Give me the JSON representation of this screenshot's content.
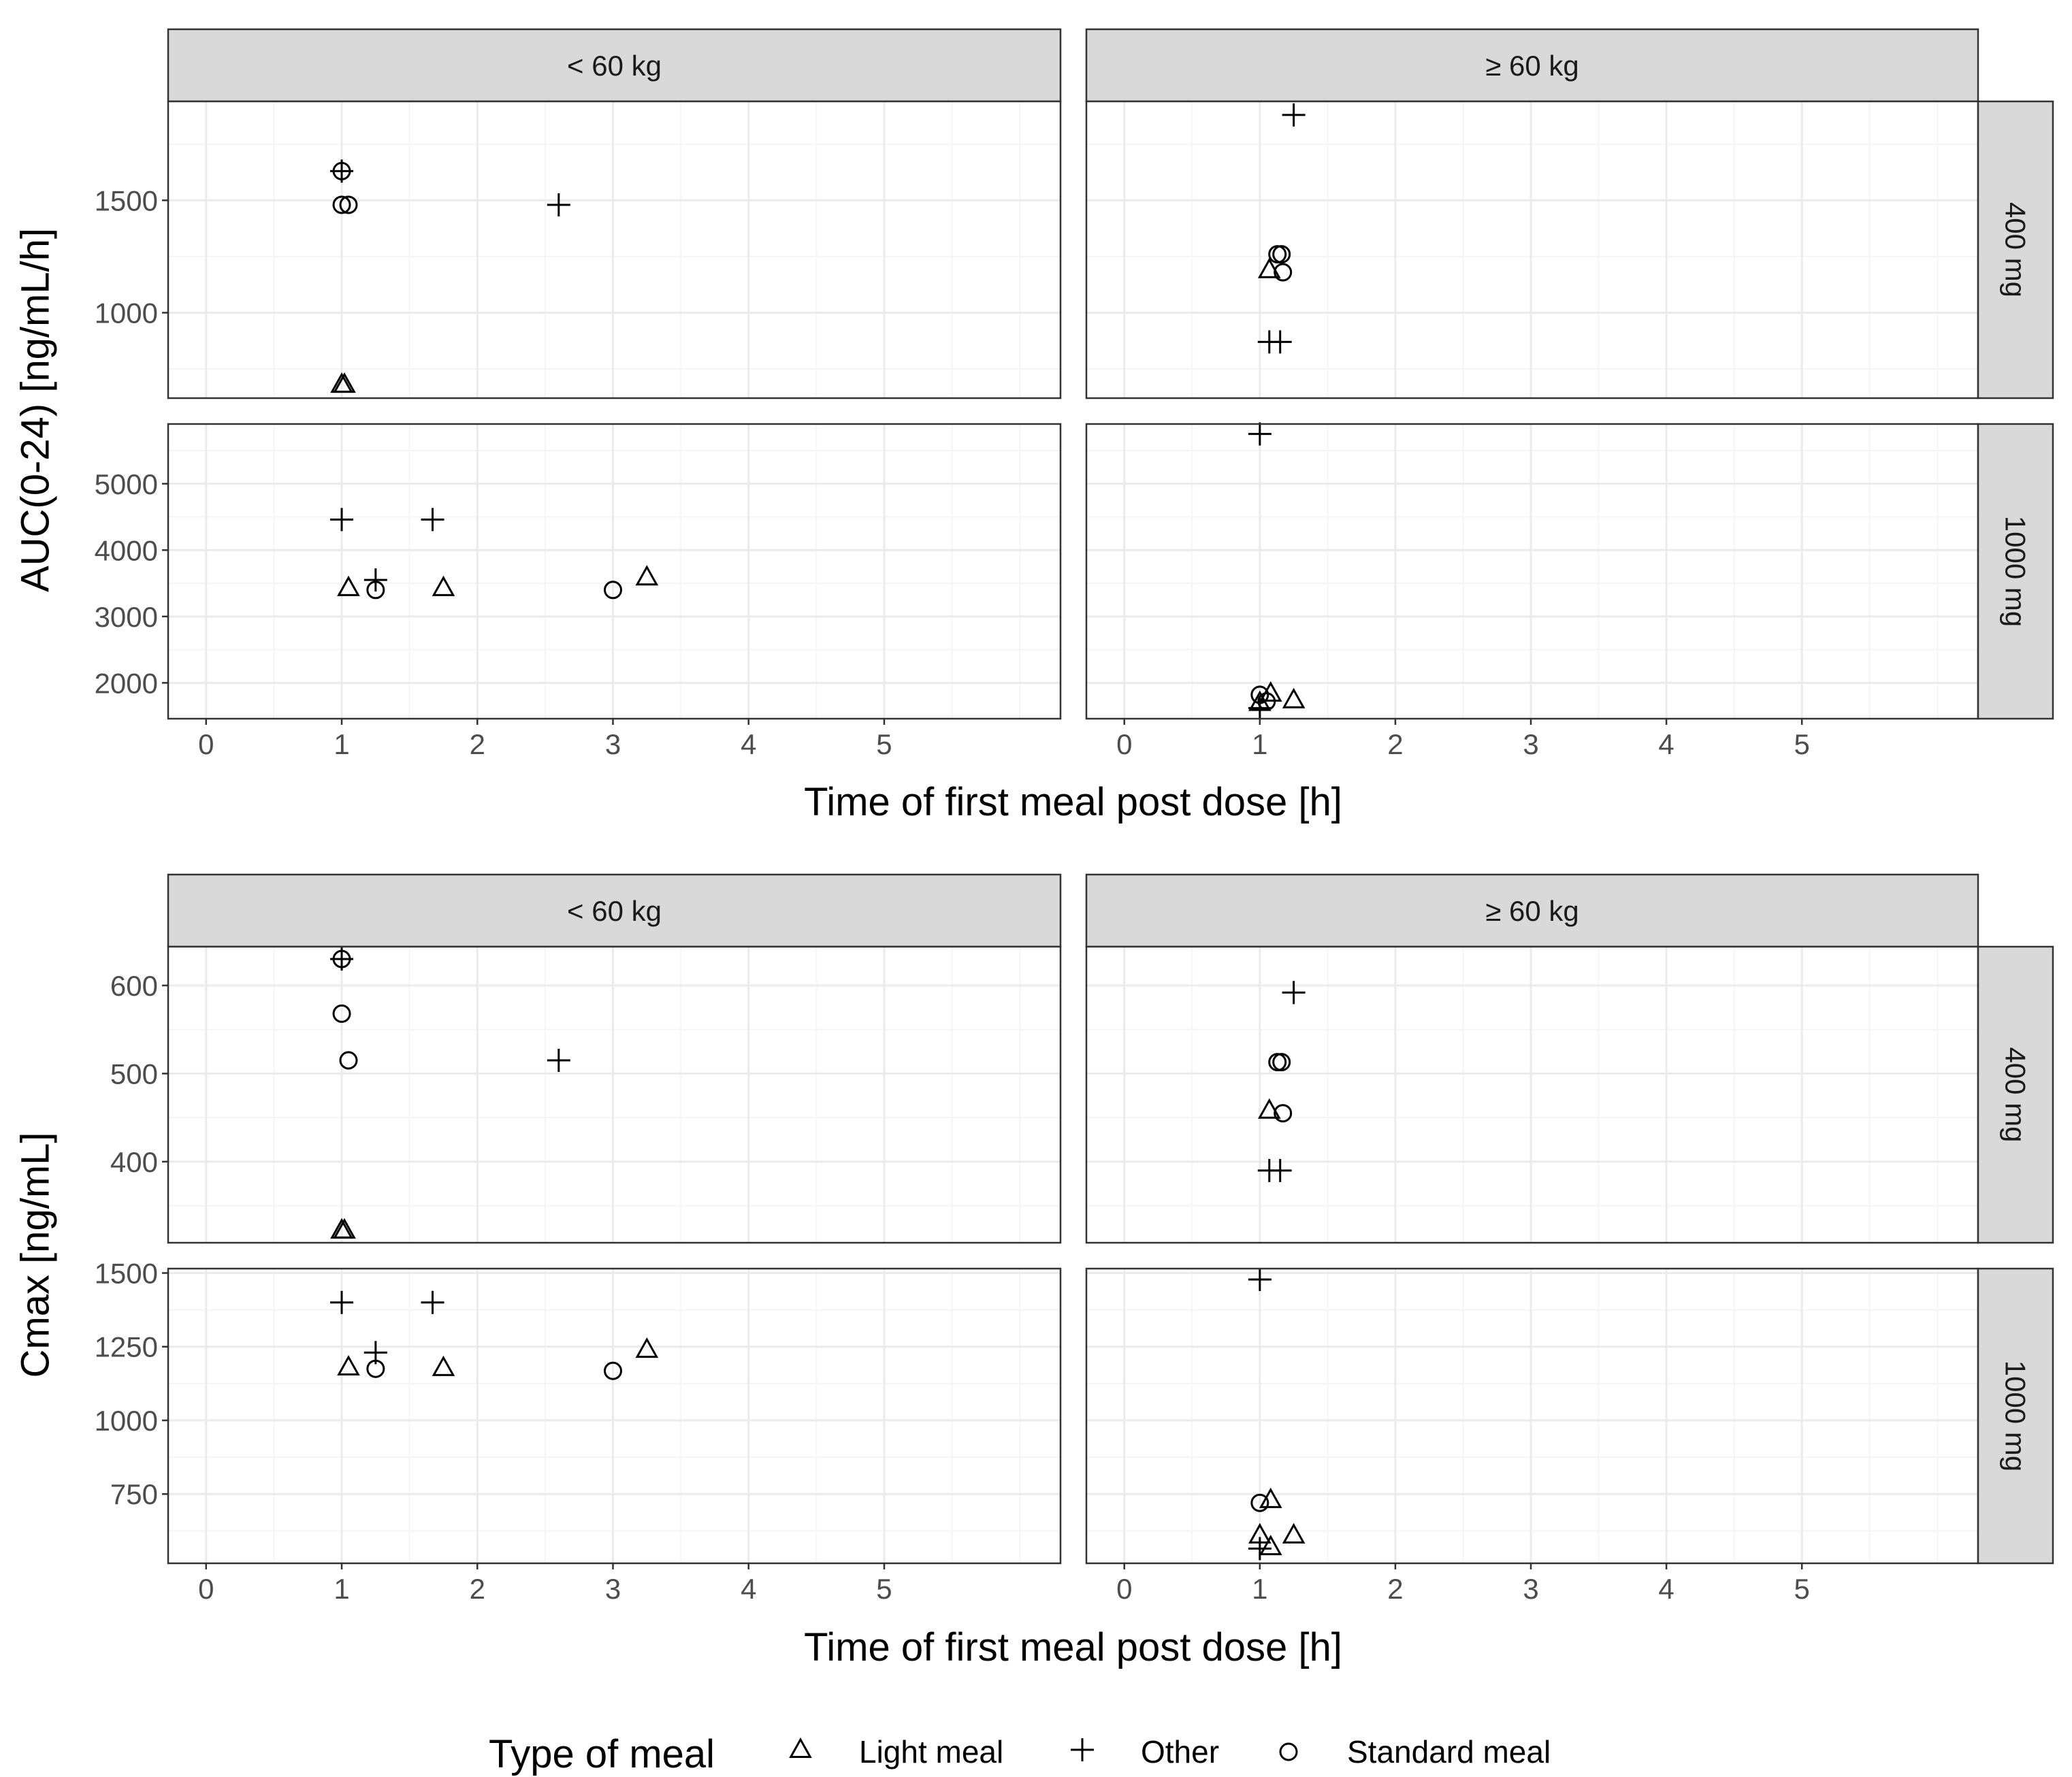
{
  "chart_data": [
    {
      "type": "scatter",
      "facet_cols": [
        "< 60 kg",
        "≥ 60 kg"
      ],
      "facet_rows": [
        "400 mg",
        "1000 mg"
      ],
      "xlabel": "Time of first meal post dose [h]",
      "ylabel": "AUC(0-24) [ng/mL/h]",
      "xlim": [
        -0.28,
        6.3
      ],
      "xticks": [
        0,
        1,
        2,
        3,
        4,
        5
      ],
      "rows_axes": [
        {
          "ylim": [
            620,
            1940
          ],
          "yticks": [
            1000,
            1500
          ]
        },
        {
          "ylim": [
            1460,
            5900
          ],
          "yticks": [
            2000,
            3000,
            4000,
            5000
          ]
        }
      ],
      "panels": [
        {
          "row": 0,
          "col": 0,
          "points": [
            {
              "x": 1.0,
              "y": 1630,
              "meal": "Other"
            },
            {
              "x": 1.0,
              "y": 1630,
              "meal": "Standard meal"
            },
            {
              "x": 1.0,
              "y": 1480,
              "meal": "Standard meal"
            },
            {
              "x": 1.05,
              "y": 1480,
              "meal": "Standard meal"
            },
            {
              "x": 2.6,
              "y": 1480,
              "meal": "Other"
            },
            {
              "x": 1.0,
              "y": 680,
              "meal": "Light meal"
            },
            {
              "x": 1.02,
              "y": 680,
              "meal": "Light meal"
            }
          ]
        },
        {
          "row": 0,
          "col": 1,
          "points": [
            {
              "x": 1.25,
              "y": 1880,
              "meal": "Other"
            },
            {
              "x": 1.13,
              "y": 1260,
              "meal": "Standard meal"
            },
            {
              "x": 1.16,
              "y": 1260,
              "meal": "Standard meal"
            },
            {
              "x": 1.07,
              "y": 1190,
              "meal": "Light meal"
            },
            {
              "x": 1.17,
              "y": 1180,
              "meal": "Standard meal"
            },
            {
              "x": 1.07,
              "y": 870,
              "meal": "Other"
            },
            {
              "x": 1.15,
              "y": 870,
              "meal": "Other"
            }
          ]
        },
        {
          "row": 1,
          "col": 0,
          "points": [
            {
              "x": 1.0,
              "y": 4460,
              "meal": "Other"
            },
            {
              "x": 1.67,
              "y": 4460,
              "meal": "Other"
            },
            {
              "x": 1.25,
              "y": 3550,
              "meal": "Other"
            },
            {
              "x": 1.05,
              "y": 3430,
              "meal": "Light meal"
            },
            {
              "x": 1.25,
              "y": 3400,
              "meal": "Standard meal"
            },
            {
              "x": 1.75,
              "y": 3430,
              "meal": "Light meal"
            },
            {
              "x": 3.0,
              "y": 3400,
              "meal": "Standard meal"
            },
            {
              "x": 3.25,
              "y": 3590,
              "meal": "Light meal"
            }
          ]
        },
        {
          "row": 1,
          "col": 1,
          "points": [
            {
              "x": 1.0,
              "y": 5750,
              "meal": "Other"
            },
            {
              "x": 1.0,
              "y": 1820,
              "meal": "Standard meal"
            },
            {
              "x": 1.08,
              "y": 1840,
              "meal": "Light meal"
            },
            {
              "x": 1.25,
              "y": 1740,
              "meal": "Light meal"
            },
            {
              "x": 1.0,
              "y": 1700,
              "meal": "Light meal"
            },
            {
              "x": 1.05,
              "y": 1720,
              "meal": "Standard meal"
            },
            {
              "x": 1.0,
              "y": 1620,
              "meal": "Other"
            }
          ]
        }
      ]
    },
    {
      "type": "scatter",
      "facet_cols": [
        "< 60 kg",
        "≥ 60 kg"
      ],
      "facet_rows": [
        "400 mg",
        "1000 mg"
      ],
      "xlabel": "Time of first meal post dose [h]",
      "ylabel": "Cmax [ng/mL]",
      "xlim": [
        -0.28,
        6.3
      ],
      "xticks": [
        0,
        1,
        2,
        3,
        4,
        5
      ],
      "rows_axes": [
        {
          "ylim": [
            308,
            644
          ],
          "yticks": [
            400,
            500,
            600
          ]
        },
        {
          "ylim": [
            515,
            1515
          ],
          "yticks": [
            750,
            1000,
            1250,
            1500
          ]
        }
      ],
      "panels": [
        {
          "row": 0,
          "col": 0,
          "points": [
            {
              "x": 1.0,
              "y": 630,
              "meal": "Other"
            },
            {
              "x": 1.0,
              "y": 630,
              "meal": "Standard meal"
            },
            {
              "x": 1.0,
              "y": 568,
              "meal": "Standard meal"
            },
            {
              "x": 1.05,
              "y": 515,
              "meal": "Standard meal"
            },
            {
              "x": 2.6,
              "y": 515,
              "meal": "Other"
            },
            {
              "x": 1.0,
              "y": 322,
              "meal": "Light meal"
            },
            {
              "x": 1.02,
              "y": 322,
              "meal": "Light meal"
            }
          ]
        },
        {
          "row": 0,
          "col": 1,
          "points": [
            {
              "x": 1.25,
              "y": 592,
              "meal": "Other"
            },
            {
              "x": 1.13,
              "y": 513,
              "meal": "Standard meal"
            },
            {
              "x": 1.16,
              "y": 513,
              "meal": "Standard meal"
            },
            {
              "x": 1.07,
              "y": 458,
              "meal": "Light meal"
            },
            {
              "x": 1.17,
              "y": 455,
              "meal": "Standard meal"
            },
            {
              "x": 1.07,
              "y": 390,
              "meal": "Other"
            },
            {
              "x": 1.15,
              "y": 390,
              "meal": "Other"
            }
          ]
        },
        {
          "row": 1,
          "col": 0,
          "points": [
            {
              "x": 1.0,
              "y": 1400,
              "meal": "Other"
            },
            {
              "x": 1.67,
              "y": 1400,
              "meal": "Other"
            },
            {
              "x": 1.25,
              "y": 1230,
              "meal": "Other"
            },
            {
              "x": 1.05,
              "y": 1180,
              "meal": "Light meal"
            },
            {
              "x": 1.25,
              "y": 1175,
              "meal": "Standard meal"
            },
            {
              "x": 1.75,
              "y": 1178,
              "meal": "Light meal"
            },
            {
              "x": 3.0,
              "y": 1168,
              "meal": "Standard meal"
            },
            {
              "x": 3.25,
              "y": 1240,
              "meal": "Light meal"
            }
          ]
        },
        {
          "row": 1,
          "col": 1,
          "points": [
            {
              "x": 1.0,
              "y": 1478,
              "meal": "Other"
            },
            {
              "x": 1.0,
              "y": 720,
              "meal": "Standard meal"
            },
            {
              "x": 1.08,
              "y": 730,
              "meal": "Light meal"
            },
            {
              "x": 1.25,
              "y": 610,
              "meal": "Light meal"
            },
            {
              "x": 1.0,
              "y": 610,
              "meal": "Light meal"
            },
            {
              "x": 1.08,
              "y": 570,
              "meal": "Light meal"
            },
            {
              "x": 1.0,
              "y": 565,
              "meal": "Other"
            }
          ]
        }
      ]
    }
  ],
  "legend": {
    "title": "Type of meal",
    "items": [
      {
        "label": "Light meal",
        "shape": "triangle"
      },
      {
        "label": "Other",
        "shape": "plus"
      },
      {
        "label": "Standard meal",
        "shape": "circle"
      }
    ]
  },
  "colors": {
    "strip_fill": "#d9d9d9",
    "panel_border": "#333333",
    "grid_major": "#ebebeb",
    "grid_minor": "#f5f5f5",
    "points": "#000000",
    "tick_text": "#4d4d4d"
  }
}
